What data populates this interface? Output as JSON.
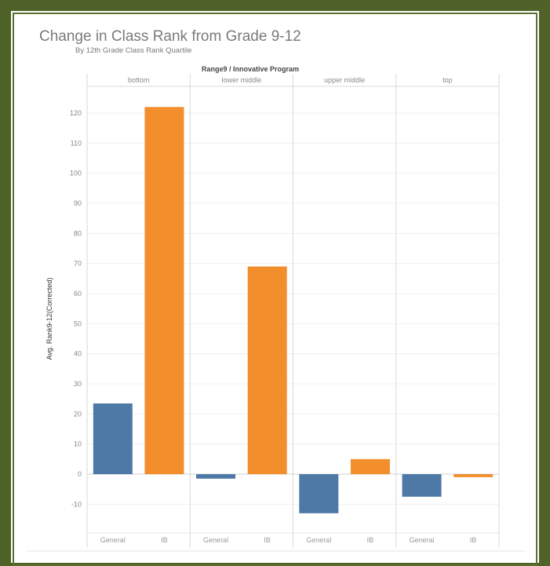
{
  "chart_data": {
    "type": "bar",
    "title": "Change in Class Rank from Grade 9-12",
    "subtitle": "By 12th Grade Class Rank Quartile",
    "column_header": "Range9 / Innovative Program",
    "ylabel": "Avg. Rank9-12(Corrected)",
    "ylim": [
      -20,
      130
    ],
    "yticks": [
      -10,
      0,
      10,
      20,
      30,
      40,
      50,
      60,
      70,
      80,
      90,
      100,
      110,
      120
    ],
    "grid": true,
    "panes": [
      {
        "name": "bottom",
        "categories": [
          "General",
          "IB"
        ],
        "values": [
          23.5,
          122
        ]
      },
      {
        "name": "lower middle",
        "categories": [
          "General",
          "IB"
        ],
        "values": [
          -1.5,
          69
        ]
      },
      {
        "name": "upper middle",
        "categories": [
          "General",
          "IB"
        ],
        "values": [
          -13,
          5
        ]
      },
      {
        "name": "top",
        "categories": [
          "General",
          "IB"
        ],
        "values": [
          -7.5,
          -1
        ]
      }
    ],
    "colors": {
      "General": "#4e79a7",
      "IB": "#f28e2b"
    }
  }
}
